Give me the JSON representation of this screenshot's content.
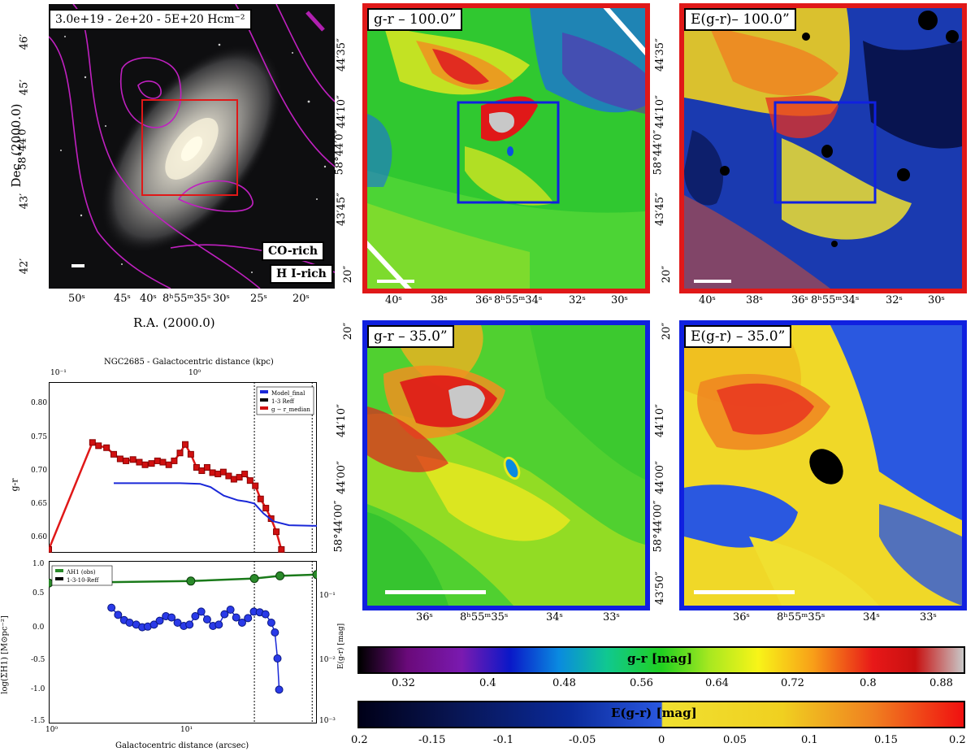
{
  "top_left": {
    "label": "3.0e+19 - 2e+20 - 5E+20 Hcm⁻²",
    "co_rich": "CO-rich",
    "hi_rich": "H I-rich",
    "dec_ticks": [
      "46′",
      "45′",
      "58°44′0″",
      "43′",
      "42′"
    ],
    "ra_ticks": [
      "50ˢ",
      "45ˢ",
      "40ˢ",
      "8ʰ55ᵐ35ˢ",
      "30ˢ",
      "25ˢ",
      "20ˢ"
    ],
    "ylabel": "Dec. (2000.0)",
    "xlabel": "R.A. (2000.0)"
  },
  "panel_gr100": {
    "label": "g-r – 100.0”",
    "dec_ticks": [
      "44′35″",
      "44′10″",
      "58°44′0″",
      "43′45″",
      "20″"
    ],
    "ra_ticks": [
      "40ˢ",
      "38ˢ",
      "36ˢ",
      "8ʰ55ᵐ34ˢ",
      "32ˢ",
      "30ˢ"
    ]
  },
  "panel_egr100": {
    "label": "E(g-r)– 100.0”",
    "dec_ticks": [
      "44′35″",
      "44′10″",
      "58°44′0″",
      "43′45″",
      "20″"
    ],
    "ra_ticks": [
      "40ˢ",
      "38ˢ",
      "36ˢ",
      "8ʰ55ᵐ34ˢ",
      "32ˢ",
      "30ˢ"
    ]
  },
  "panel_gr35": {
    "label": "g-r – 35.0”",
    "dec_ticks": [
      "20″",
      "44′10″",
      "44′00″",
      "58°44′00″"
    ],
    "ra_ticks": [
      "36ˢ",
      "8ʰ55ᵐ35ˢ",
      "34ˢ",
      "33ˢ"
    ]
  },
  "panel_egr35": {
    "label": "E(g-r) – 35.0”",
    "dec_ticks": [
      "20″",
      "44′10″",
      "44′00″",
      "58°44′00″",
      "43′50″"
    ],
    "ra_ticks": [
      "36ˢ",
      "8ʰ55ᵐ35ˢ",
      "34ˢ",
      "33ˢ"
    ]
  },
  "colorbar_gr": {
    "label": "g-r [mag]",
    "ticks": [
      "0.32",
      "0.4",
      "0.48",
      "0.56",
      "0.64",
      "0.72",
      "0.8",
      "0.88"
    ]
  },
  "colorbar_egr": {
    "label": "E(g-r) [mag]",
    "side_label": "E(g-r) [mag]",
    "ticks": [
      "0.2",
      "-0.15",
      "-0.1",
      "-0.05",
      "0",
      "0.05",
      "0.1",
      "0.15",
      "0.2"
    ]
  },
  "chart_data": [
    {
      "type": "line",
      "title": "NGC2685 - Galactocentric distance (kpc)",
      "ylabel": "g-r",
      "xscale": "log",
      "xlim": [
        1,
        70
      ],
      "ylim": [
        0.58,
        0.84
      ],
      "top_ticks": [
        "10⁻¹",
        "10⁰"
      ],
      "yticks": [
        "0.80",
        "0.75",
        "0.70",
        "0.65",
        "0.60"
      ],
      "legend": [
        "Model_final",
        "1-3 Reff",
        "g − r_median"
      ],
      "legend_position": "top-right",
      "vlines_x": [
        26,
        65
      ],
      "series": [
        {
          "name": "g − r_median",
          "x": [
            1.0,
            2.0,
            2.2,
            2.5,
            2.8,
            3.1,
            3.4,
            3.8,
            4.2,
            4.6,
            5.1,
            5.6,
            6.1,
            6.7,
            7.3,
            8.0,
            8.7,
            9.5,
            10.4,
            11.3,
            12.3,
            13.4,
            14.6,
            15.9,
            17.3,
            18.8,
            20.5,
            22.3,
            24.3,
            26.4,
            28.7,
            31.2,
            33.9,
            36.8,
            39.9
          ],
          "y": [
            0.585,
            0.748,
            0.743,
            0.74,
            0.73,
            0.723,
            0.72,
            0.722,
            0.718,
            0.714,
            0.716,
            0.72,
            0.718,
            0.714,
            0.72,
            0.732,
            0.745,
            0.73,
            0.71,
            0.705,
            0.71,
            0.702,
            0.7,
            0.703,
            0.697,
            0.692,
            0.695,
            0.7,
            0.69,
            0.682,
            0.662,
            0.648,
            0.632,
            0.612,
            0.585
          ]
        },
        {
          "name": "Model_final",
          "x": [
            2.8,
            5.0,
            8.0,
            11.0,
            13.0,
            16.0,
            20.0,
            23.0,
            26.0,
            30.0,
            35.0,
            45.0,
            70.0
          ],
          "y": [
            0.686,
            0.686,
            0.686,
            0.685,
            0.68,
            0.667,
            0.66,
            0.658,
            0.655,
            0.64,
            0.628,
            0.622,
            0.621
          ]
        }
      ]
    },
    {
      "type": "line",
      "xlabel": "Galactocentric distance (arcsec)",
      "ylabel": "log(ΣH1) [M⊙pc⁻²]",
      "xscale": "log",
      "xlim": [
        1,
        70
      ],
      "ylim": [
        -1.5,
        1.0
      ],
      "xticks": [
        "10⁰",
        "10¹"
      ],
      "yticks": [
        "1.0",
        "0.5",
        "0.0",
        "-0.5",
        "-1.0",
        "-1.5"
      ],
      "y2ticks": [
        "10⁻¹",
        "10⁻²",
        "10⁻³"
      ],
      "legend": [
        "ΛH1 (obs)",
        "1-3-10-Reff"
      ],
      "legend_position": "top-left",
      "vlines_x": [
        26,
        65
      ],
      "series": [
        {
          "name": "ΛH1 (obs)",
          "x": [
            1.0,
            9.5,
            26.0,
            39.0,
            70.0
          ],
          "y": [
            0.66,
            0.69,
            0.73,
            0.77,
            0.79
          ]
        },
        {
          "name": "log(ΣH1)",
          "x": [
            2.7,
            3.0,
            3.3,
            3.6,
            4.0,
            4.4,
            4.8,
            5.3,
            5.8,
            6.4,
            7.0,
            7.7,
            8.5,
            9.3,
            10.2,
            11.2,
            12.3,
            13.5,
            14.8,
            16.2,
            17.8,
            19.5,
            21.4,
            23.5,
            25.8,
            28.3,
            31.0,
            34.0,
            36.0,
            37.5,
            38.5
          ],
          "y": [
            0.28,
            0.17,
            0.09,
            0.05,
            0.02,
            -0.02,
            -0.01,
            0.02,
            0.08,
            0.15,
            0.13,
            0.05,
            0.0,
            0.02,
            0.15,
            0.22,
            0.1,
            0.0,
            0.02,
            0.18,
            0.25,
            0.13,
            0.05,
            0.12,
            0.22,
            0.21,
            0.18,
            0.05,
            -0.1,
            -0.5,
            -0.98
          ]
        }
      ]
    }
  ]
}
